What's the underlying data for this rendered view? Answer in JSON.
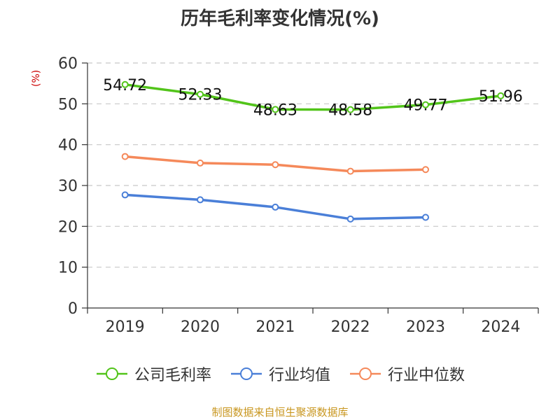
{
  "chart_data": {
    "type": "line",
    "title": "历年毛利率变化情况(%)",
    "ylabel": "(%)",
    "categories": [
      "2019",
      "2020",
      "2021",
      "2022",
      "2023",
      "2024"
    ],
    "ylim": [
      0,
      60
    ],
    "yticks": [
      0,
      10,
      20,
      30,
      40,
      50,
      60
    ],
    "grid": true,
    "legend_position": "bottom",
    "series": [
      {
        "name": "公司毛利率",
        "color": "#52c41a",
        "labels": true,
        "values": [
          54.72,
          52.33,
          48.63,
          48.58,
          49.77,
          51.96
        ]
      },
      {
        "name": "行业均值",
        "color": "#4a7fd8",
        "labels": false,
        "values": [
          27.7,
          26.5,
          24.7,
          21.8,
          22.2,
          null
        ]
      },
      {
        "name": "行业中位数",
        "color": "#f5895a",
        "labels": false,
        "values": [
          37.1,
          35.5,
          35.1,
          33.5,
          33.9,
          null
        ]
      }
    ],
    "source": "制图数据来自恒生聚源数据库"
  }
}
